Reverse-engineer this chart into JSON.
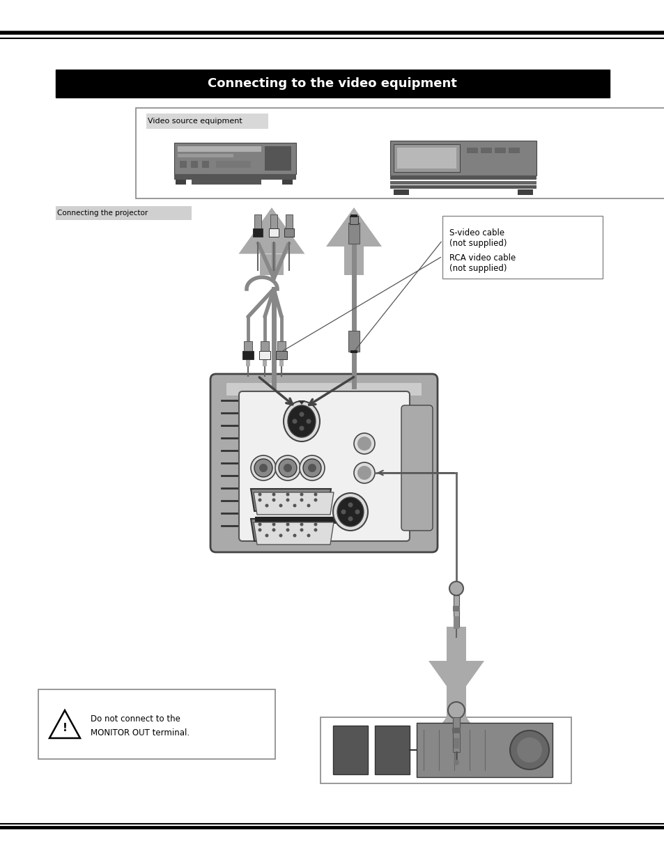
{
  "bg_color": "#ffffff",
  "header_bg": "#000000",
  "header_text_color": "#ffffff",
  "header_text": "Connecting to the video equipment",
  "box1_label": "Video source equipment",
  "note_line1": "S-video cable",
  "note_line2": "(not supplied)",
  "note_line3": "RCA video cable",
  "note_line4": "(not supplied)",
  "warning_line1": "Do not connect to the",
  "warning_line2": "MONITOR OUT terminal.",
  "gray_arrow": "#aaaaaa",
  "gray_dark": "#666666",
  "gray_med": "#888888",
  "gray_light": "#cccccc",
  "cable_dark": "#555555",
  "cable_gray": "#808080",
  "projector_outer": "#aaaaaa",
  "projector_inner": "#dddddd",
  "projector_panel": "#eeeeee",
  "panel_dark": "#333333",
  "vcr_gray": "#888888",
  "black": "#000000",
  "white": "#ffffff"
}
